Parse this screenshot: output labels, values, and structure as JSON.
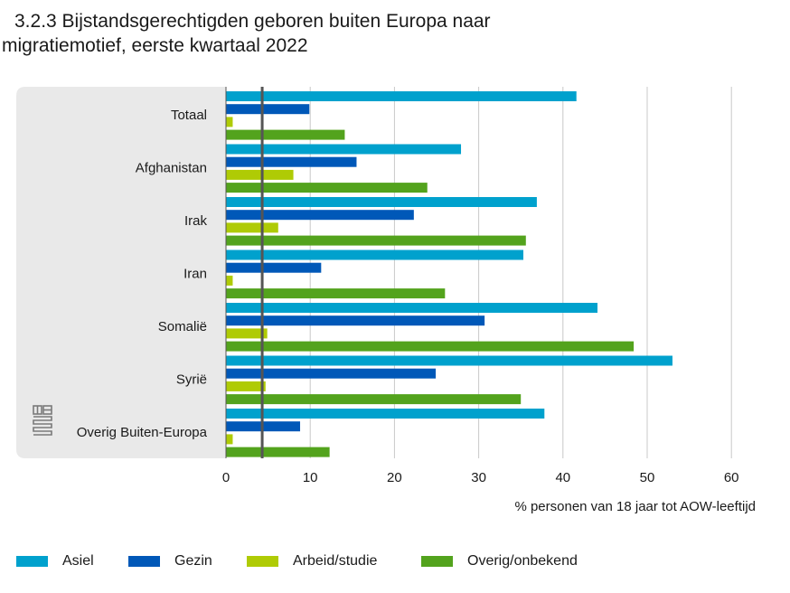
{
  "title_line1": "3.2.3 Bijstandsgerechtigden geboren buiten Europa naar",
  "title_line2": "migratiemotief, eerste kwartaal 2022",
  "colors": {
    "Asiel": "#00a1cd",
    "Gezin": "#0058b8",
    "Arbeid/studie": "#afcb05",
    "Overig/onbekend": "#53a31d",
    "panel": "#e9e9e9",
    "grid": "#c8c8c8",
    "reference_line": "#555555"
  },
  "logo_icon": "cbs-logo-icon",
  "chart_data": {
    "type": "bar",
    "orientation": "horizontal",
    "categories": [
      "Totaal",
      "Afghanistan",
      "Irak",
      "Iran",
      "Somalië",
      "Syrië",
      "Overig Buiten-Europa"
    ],
    "series": [
      {
        "name": "Asiel",
        "values": [
          41.6,
          27.9,
          36.9,
          35.3,
          44.1,
          53.0,
          37.8
        ]
      },
      {
        "name": "Gezin",
        "values": [
          9.9,
          15.5,
          22.3,
          11.3,
          30.7,
          24.9,
          8.8
        ]
      },
      {
        "name": "Arbeid/studie",
        "values": [
          0.8,
          8.0,
          6.2,
          0.8,
          4.9,
          4.7,
          0.8
        ]
      },
      {
        "name": "Overig/onbekend",
        "values": [
          14.1,
          23.9,
          35.6,
          26.0,
          48.4,
          35.0,
          12.3
        ]
      }
    ],
    "xlim": [
      0,
      60
    ],
    "x_ticks": [
      0,
      10,
      20,
      30,
      40,
      50,
      60
    ],
    "xlabel": "% personen van 18 jaar tot AOW-leeftijd",
    "ylabel": "",
    "reference_line_value": 4.3,
    "grid": true,
    "legend_position": "bottom"
  }
}
